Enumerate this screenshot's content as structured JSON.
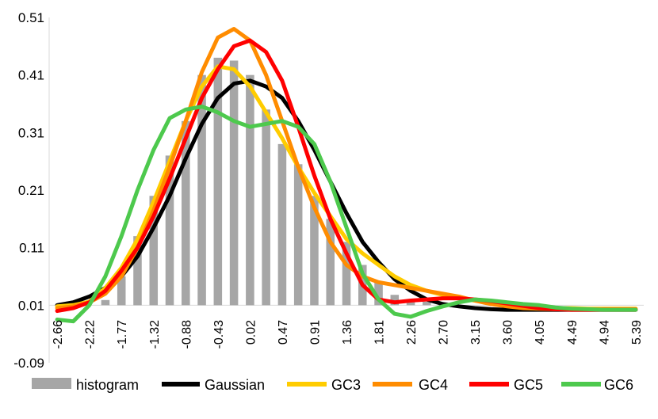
{
  "chart_data": {
    "type": "bar",
    "title": "",
    "xlabel": "",
    "ylabel": "",
    "ylim": [
      -0.09,
      0.51
    ],
    "yticks": [
      "0.51",
      "0.41",
      "0.31",
      "0.21",
      "0.11",
      "0.01",
      "-0.09"
    ],
    "ytick_values": [
      0.51,
      0.41,
      0.31,
      0.21,
      0.11,
      0.01,
      -0.09
    ],
    "grid": false,
    "legend_position": "bottom",
    "x_labels_shown": [
      "-2.66",
      "-2.22",
      "-1.77",
      "-1.32",
      "-0.88",
      "-0.43",
      "0.02",
      "0.47",
      "0.91",
      "1.36",
      "1.81",
      "2.26",
      "2.70",
      "3.15",
      "3.60",
      "4.05",
      "4.49",
      "4.94",
      "5.39"
    ],
    "x": [
      -2.66,
      -2.44,
      -2.22,
      -2.0,
      -1.77,
      -1.55,
      -1.32,
      -1.1,
      -0.88,
      -0.66,
      -0.43,
      -0.21,
      0.02,
      0.24,
      0.47,
      0.69,
      0.91,
      1.14,
      1.36,
      1.59,
      1.81,
      2.04,
      2.26,
      2.48,
      2.7,
      2.93,
      3.15,
      3.38,
      3.6,
      3.83,
      4.05,
      4.27,
      4.49,
      4.72,
      4.94,
      5.17,
      5.39
    ],
    "series": [
      {
        "name": "histogram",
        "kind": "bar",
        "color": "#a6a6a6",
        "values": [
          0.0,
          0.0,
          0.0,
          0.019,
          0.06,
          0.13,
          0.2,
          0.27,
          0.33,
          0.41,
          0.44,
          0.435,
          0.41,
          0.35,
          0.29,
          0.255,
          0.2,
          0.16,
          0.12,
          0.08,
          0.05,
          0.028,
          0.02,
          0.016,
          0.012,
          0.008,
          0.006,
          0.004,
          0.003,
          0.002,
          0.001,
          0.0,
          0.0,
          0.0,
          0.0,
          0.0,
          0.0
        ]
      },
      {
        "name": "Gaussian",
        "kind": "line",
        "color": "#000000",
        "values": [
          0.01,
          0.015,
          0.025,
          0.04,
          0.06,
          0.095,
          0.145,
          0.2,
          0.265,
          0.325,
          0.37,
          0.395,
          0.4,
          0.39,
          0.37,
          0.33,
          0.28,
          0.225,
          0.17,
          0.12,
          0.085,
          0.055,
          0.035,
          0.02,
          0.012,
          0.008,
          0.005,
          0.003,
          0.002,
          0.002,
          0.002,
          0.002,
          0.002,
          0.002,
          0.002,
          0.002,
          0.002
        ]
      },
      {
        "name": "GC3",
        "kind": "line",
        "color": "#ffcc00",
        "values": [
          0.008,
          0.01,
          0.016,
          0.04,
          0.075,
          0.125,
          0.19,
          0.26,
          0.33,
          0.39,
          0.425,
          0.42,
          0.39,
          0.345,
          0.3,
          0.25,
          0.205,
          0.165,
          0.125,
          0.1,
          0.08,
          0.06,
          0.045,
          0.035,
          0.028,
          0.022,
          0.018,
          0.014,
          0.01,
          0.008,
          0.007,
          0.005,
          0.005,
          0.004,
          0.004,
          0.004,
          0.004
        ]
      },
      {
        "name": "GC4",
        "kind": "line",
        "color": "#ff8c00",
        "values": [
          0.005,
          0.008,
          0.015,
          0.03,
          0.06,
          0.11,
          0.175,
          0.25,
          0.33,
          0.415,
          0.475,
          0.49,
          0.47,
          0.41,
          0.33,
          0.25,
          0.18,
          0.12,
          0.08,
          0.06,
          0.05,
          0.045,
          0.04,
          0.035,
          0.03,
          0.025,
          0.018,
          0.012,
          0.008,
          0.005,
          0.004,
          0.003,
          0.003,
          0.003,
          0.003,
          0.003,
          0.003
        ]
      },
      {
        "name": "GC5",
        "kind": "line",
        "color": "#ff0000",
        "values": [
          0.0,
          0.005,
          0.015,
          0.035,
          0.07,
          0.11,
          0.165,
          0.23,
          0.3,
          0.37,
          0.42,
          0.46,
          0.47,
          0.45,
          0.4,
          0.32,
          0.235,
          0.16,
          0.1,
          0.045,
          0.02,
          0.015,
          0.018,
          0.02,
          0.022,
          0.022,
          0.02,
          0.017,
          0.013,
          0.009,
          0.005,
          0.003,
          0.002,
          0.002,
          0.002,
          0.002,
          0.002
        ]
      },
      {
        "name": "GC6",
        "kind": "line",
        "color": "#4dc94d",
        "values": [
          -0.015,
          -0.018,
          0.01,
          0.06,
          0.13,
          0.21,
          0.28,
          0.335,
          0.35,
          0.355,
          0.345,
          0.33,
          0.32,
          0.325,
          0.33,
          0.32,
          0.29,
          0.225,
          0.145,
          0.065,
          0.02,
          -0.005,
          -0.01,
          0.0,
          0.008,
          0.015,
          0.02,
          0.018,
          0.015,
          0.012,
          0.01,
          0.006,
          0.004,
          0.003,
          0.002,
          0.002,
          0.002
        ]
      }
    ]
  }
}
